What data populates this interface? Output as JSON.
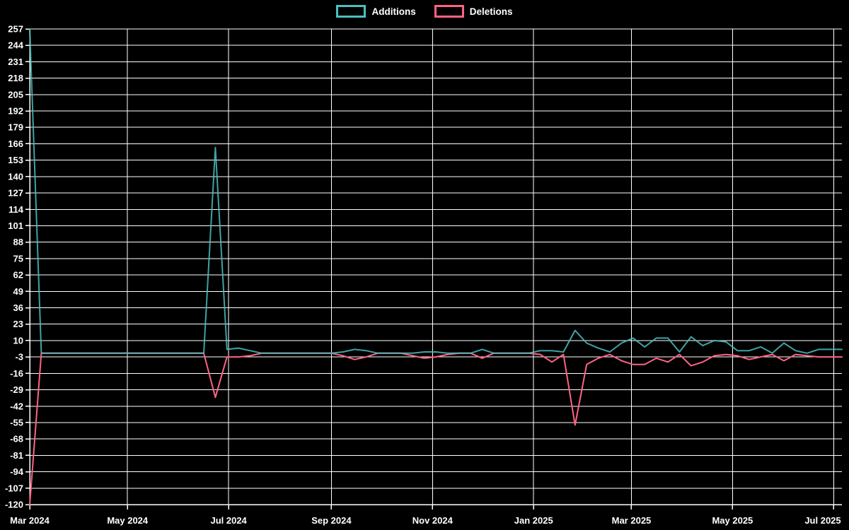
{
  "page": {
    "background": "#000000"
  },
  "legend": {
    "items": [
      {
        "label": "Additions",
        "color": "#4bc0c0"
      },
      {
        "label": "Deletions",
        "color": "#ff6384"
      }
    ]
  },
  "chart_data": {
    "type": "line",
    "title": "",
    "xlabel": "",
    "ylabel": "",
    "grid": true,
    "legend_position": "top",
    "background": "#000000",
    "grid_color": "#ffffff",
    "axis_color": "#ffffff",
    "tick_label_color": "#ffffff",
    "points_interval": "weekly",
    "x_axis": {
      "tick_labels": [
        "Mar 2024",
        "May 2024",
        "Jul 2024",
        "Sep 2024",
        "Nov 2024",
        "Jan 2025",
        "Mar 2025",
        "May 2025",
        "Jul 2025"
      ],
      "tick_day_offsets": [
        0,
        59,
        120,
        182,
        243,
        304,
        363,
        424,
        485
      ],
      "total_days": 490
    },
    "y_axis": {
      "max": 257,
      "min": -120,
      "ticks": [
        257,
        244,
        231,
        218,
        205,
        192,
        179,
        166,
        153,
        140,
        127,
        114,
        101,
        88,
        75,
        62,
        49,
        36,
        23,
        10,
        -3,
        -16,
        -29,
        -42,
        -55,
        -68,
        -81,
        -94,
        -107,
        -120
      ]
    },
    "series": [
      {
        "name": "Additions",
        "color": "#4bc0c0",
        "values": [
          257,
          0,
          0,
          0,
          0,
          0,
          0,
          0,
          0,
          0,
          0,
          0,
          0,
          0,
          0,
          0,
          163,
          3,
          4,
          2,
          0,
          0,
          0,
          0,
          0,
          0,
          0,
          1,
          3,
          2,
          0,
          0,
          0,
          0,
          1,
          1,
          0,
          0,
          0,
          3,
          0,
          0,
          0,
          0,
          2,
          2,
          1,
          18,
          8,
          4,
          1,
          8,
          12,
          5,
          12,
          12,
          1,
          13,
          6,
          10,
          9,
          2,
          2,
          5,
          0,
          8,
          2,
          0,
          3,
          3,
          3
        ]
      },
      {
        "name": "Deletions",
        "color": "#ff6384",
        "values": [
          -120,
          0,
          0,
          0,
          0,
          0,
          0,
          0,
          0,
          0,
          0,
          0,
          0,
          0,
          0,
          0,
          -35,
          -3,
          -3,
          -2,
          0,
          0,
          0,
          0,
          0,
          0,
          0,
          -2,
          -5,
          -3,
          0,
          0,
          0,
          -2,
          -4,
          -3,
          -1,
          0,
          0,
          -4,
          0,
          0,
          0,
          0,
          -1,
          -7,
          -1,
          -57,
          -9,
          -4,
          -1,
          -6,
          -9,
          -9,
          -4,
          -7,
          -1,
          -10,
          -7,
          -2,
          -1,
          -2,
          -5,
          -3,
          -1,
          -6,
          -1,
          -2,
          -3,
          -3,
          -3
        ]
      }
    ]
  }
}
